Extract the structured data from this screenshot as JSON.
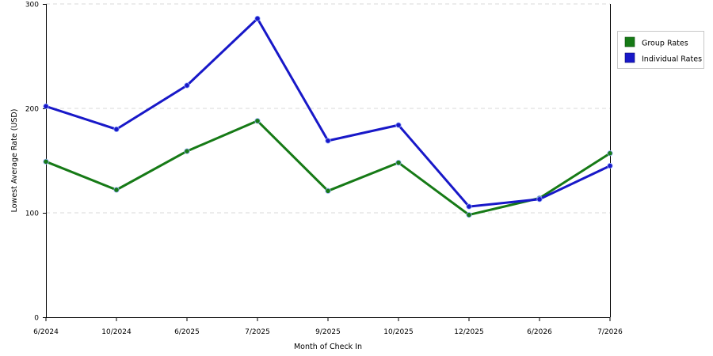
{
  "chart_data": {
    "type": "line",
    "title": "",
    "xlabel": "Month of Check In",
    "ylabel": "Lowest Average Rate (USD)",
    "categories": [
      "6/2024",
      "10/2024",
      "6/2025",
      "7/2025",
      "9/2025",
      "10/2025",
      "12/2025",
      "6/2026",
      "7/2026"
    ],
    "ylim": [
      0,
      300
    ],
    "yticks": [
      "0",
      "100",
      "200",
      "300"
    ],
    "grid": true,
    "legend_position": "top-right",
    "series": [
      {
        "name": "Group Rates",
        "color": "#167a16",
        "values": [
          149,
          122,
          159,
          188,
          121,
          148,
          98,
          114,
          157
        ]
      },
      {
        "name": "Individual Rates",
        "color": "#1818c8",
        "values": [
          202,
          180,
          222,
          286,
          169,
          184,
          106,
          113,
          145
        ]
      }
    ]
  }
}
